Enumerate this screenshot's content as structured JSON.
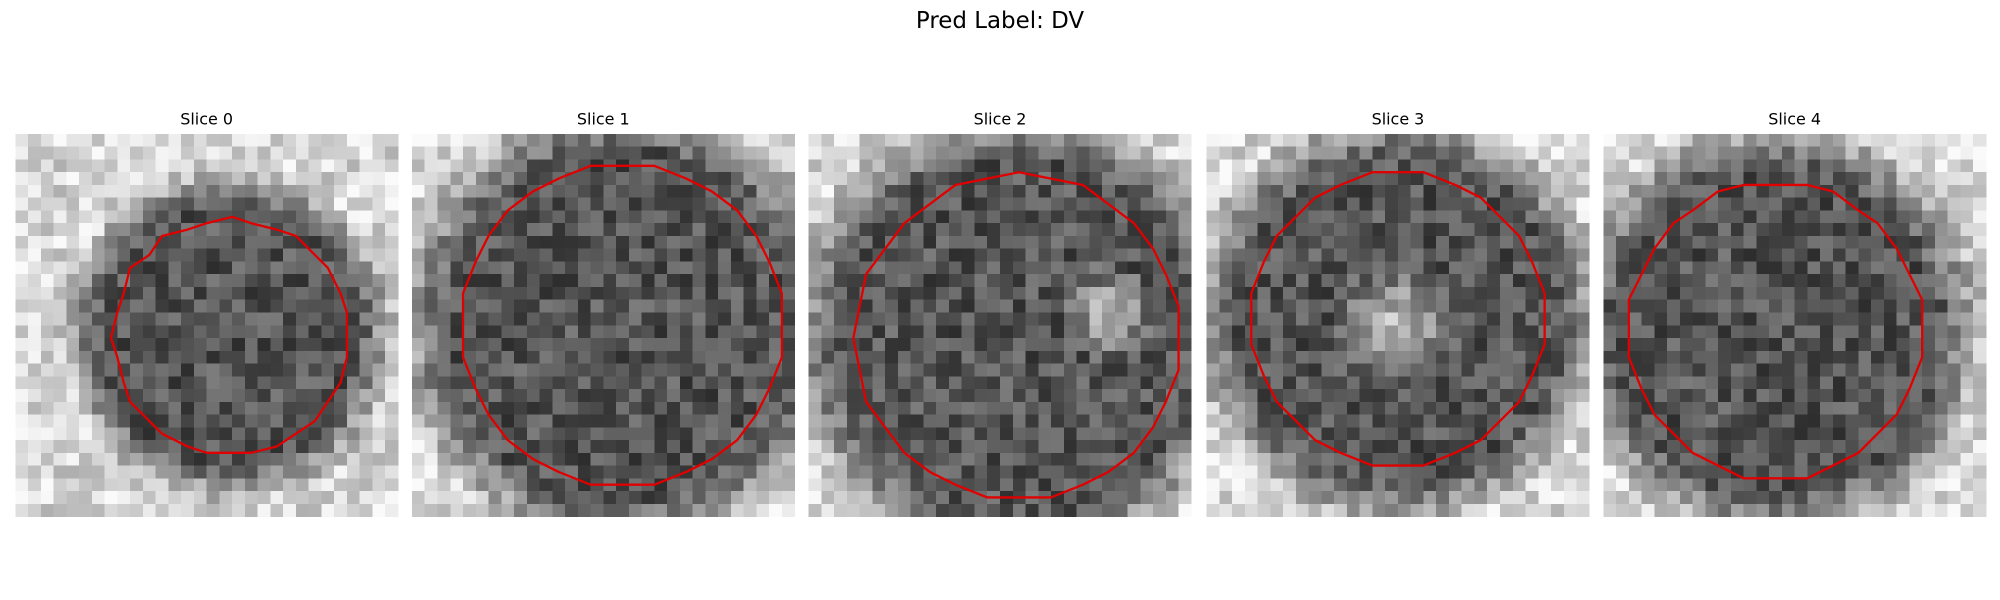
{
  "title": "Pred Label: DV",
  "panels": [
    {
      "title": "Slice 0"
    },
    {
      "title": "Slice 1"
    },
    {
      "title": "Slice 2"
    },
    {
      "title": "Slice 3"
    },
    {
      "title": "Slice 4"
    }
  ]
}
